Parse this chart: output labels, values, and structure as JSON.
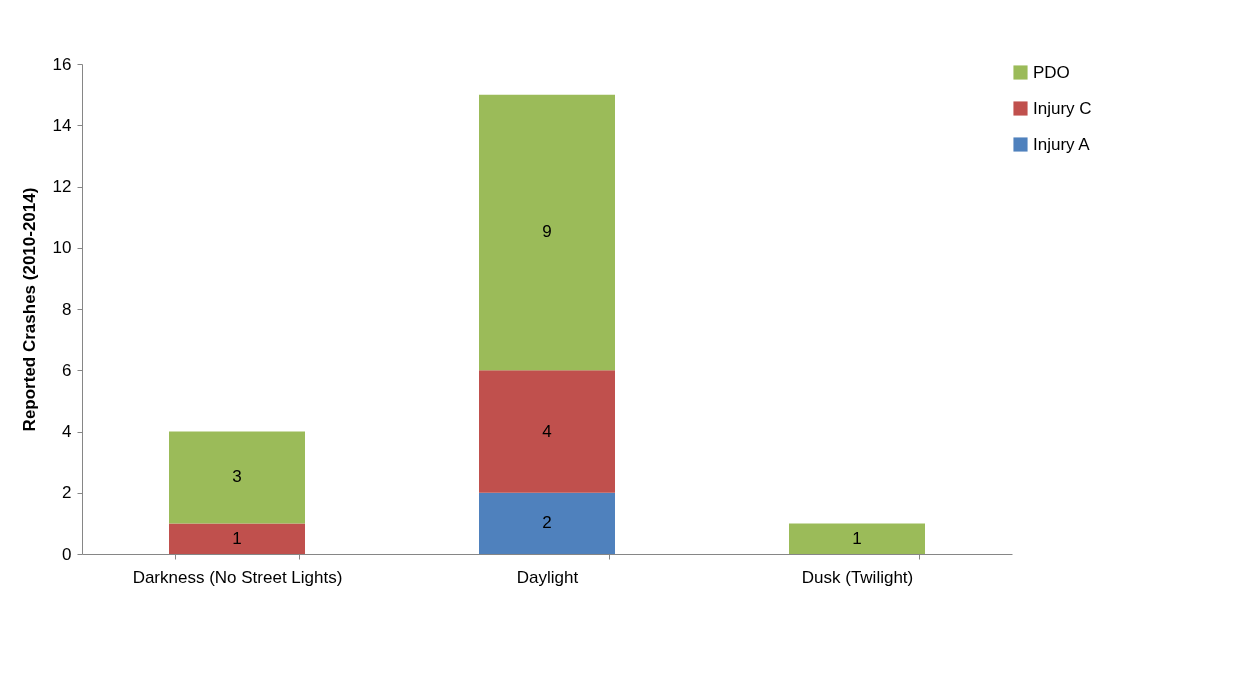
{
  "chart_data": {
    "type": "bar",
    "stacked": true,
    "ylabel": "Reported Crashes (2010-2014)",
    "categories": [
      "Darkness (No Street Lights)",
      "Daylight",
      "Dusk (Twilight)"
    ],
    "series": [
      {
        "name": "Injury A",
        "color": "#4f81bd",
        "values": [
          null,
          2,
          null
        ]
      },
      {
        "name": "Injury C",
        "color": "#c0504d",
        "values": [
          1,
          4,
          null
        ]
      },
      {
        "name": "PDO",
        "color": "#9bbb59",
        "values": [
          3,
          9,
          1
        ]
      }
    ],
    "ylim": [
      0,
      16
    ],
    "yticks": [
      0,
      2,
      4,
      6,
      8,
      10,
      12,
      14,
      16
    ],
    "grid": false,
    "legend": "right",
    "data_labels": true
  }
}
